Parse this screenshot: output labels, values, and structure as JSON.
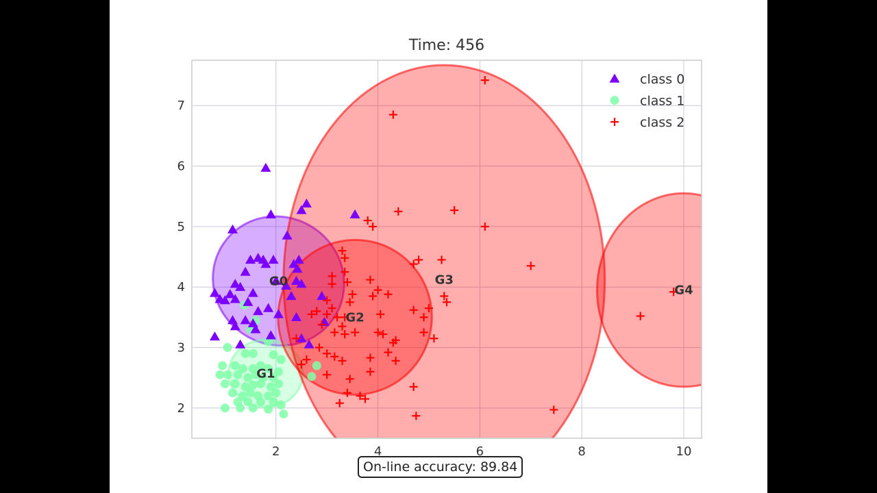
{
  "chart_data": {
    "type": "scatter",
    "title": "Time: 456",
    "xlabel": "",
    "ylabel": "",
    "xlim": [
      0.35,
      10.35
    ],
    "ylim": [
      1.5,
      7.75
    ],
    "xticks": [
      2,
      4,
      6,
      8,
      10
    ],
    "yticks": [
      2,
      3,
      4,
      5,
      6,
      7
    ],
    "grid": true,
    "legend_position": "top-right",
    "series": [
      {
        "name": "class 0",
        "marker": "triangle",
        "color": "#7b00ff",
        "points": [
          [
            1.8,
            5.97
          ],
          [
            2.6,
            5.38
          ],
          [
            2.5,
            5.27
          ],
          [
            3.55,
            5.2
          ],
          [
            1.9,
            5.2
          ],
          [
            1.15,
            4.95
          ],
          [
            2.22,
            4.85
          ],
          [
            1.5,
            4.45
          ],
          [
            1.65,
            4.48
          ],
          [
            1.75,
            4.45
          ],
          [
            1.95,
            4.45
          ],
          [
            2.45,
            4.45
          ],
          [
            1.8,
            4.38
          ],
          [
            2.35,
            4.38
          ],
          [
            2.42,
            4.3
          ],
          [
            1.4,
            4.25
          ],
          [
            2.4,
            4.1
          ],
          [
            2.0,
            4.1
          ],
          [
            1.2,
            4.05
          ],
          [
            1.3,
            4.0
          ],
          [
            2.2,
            4.02
          ],
          [
            2.5,
            4.05
          ],
          [
            0.8,
            3.9
          ],
          [
            1.1,
            3.88
          ],
          [
            1.55,
            3.9
          ],
          [
            2.3,
            3.85
          ],
          [
            2.9,
            3.85
          ],
          [
            0.9,
            3.8
          ],
          [
            1.0,
            3.78
          ],
          [
            1.2,
            3.8
          ],
          [
            1.45,
            3.75
          ],
          [
            1.65,
            3.6
          ],
          [
            1.85,
            3.65
          ],
          [
            2.05,
            3.55
          ],
          [
            2.4,
            3.5
          ],
          [
            1.15,
            3.45
          ],
          [
            1.4,
            3.45
          ],
          [
            1.55,
            3.4
          ],
          [
            2.95,
            3.42
          ],
          [
            1.2,
            3.35
          ],
          [
            1.6,
            3.3
          ],
          [
            1.9,
            3.2
          ],
          [
            0.8,
            3.18
          ],
          [
            2.5,
            3.15
          ],
          [
            2.65,
            3.05
          ],
          [
            1.3,
            3.05
          ]
        ]
      },
      {
        "name": "class 1",
        "marker": "circle",
        "color": "#7fffa8",
        "points": [
          [
            1.38,
            3.7
          ],
          [
            1.6,
            3.45
          ],
          [
            1.5,
            3.3
          ],
          [
            1.85,
            3.1
          ],
          [
            1.05,
            3.0
          ],
          [
            1.4,
            2.9
          ],
          [
            1.55,
            2.9
          ],
          [
            1.95,
            2.88
          ],
          [
            2.1,
            2.8
          ],
          [
            0.95,
            2.7
          ],
          [
            1.2,
            2.7
          ],
          [
            1.35,
            2.65
          ],
          [
            1.55,
            2.65
          ],
          [
            1.7,
            2.7
          ],
          [
            1.85,
            2.65
          ],
          [
            2.05,
            2.6
          ],
          [
            0.9,
            2.55
          ],
          [
            1.05,
            2.55
          ],
          [
            1.25,
            2.55
          ],
          [
            1.45,
            2.5
          ],
          [
            1.6,
            2.55
          ],
          [
            1.75,
            2.5
          ],
          [
            1.95,
            2.5
          ],
          [
            1.0,
            2.4
          ],
          [
            1.2,
            2.4
          ],
          [
            1.4,
            2.35
          ],
          [
            1.55,
            2.38
          ],
          [
            1.7,
            2.4
          ],
          [
            1.9,
            2.35
          ],
          [
            2.05,
            2.4
          ],
          [
            1.15,
            2.25
          ],
          [
            1.35,
            2.2
          ],
          [
            1.5,
            2.25
          ],
          [
            1.65,
            2.2
          ],
          [
            1.85,
            2.2
          ],
          [
            2.0,
            2.25
          ],
          [
            1.25,
            2.1
          ],
          [
            1.45,
            2.1
          ],
          [
            1.7,
            2.1
          ],
          [
            1.95,
            2.1
          ],
          [
            2.1,
            2.05
          ],
          [
            1.0,
            2.0
          ],
          [
            1.3,
            2.0
          ],
          [
            1.55,
            2.0
          ],
          [
            1.85,
            1.98
          ],
          [
            2.15,
            1.9
          ],
          [
            2.8,
            2.7
          ],
          [
            2.7,
            2.52
          ]
        ]
      },
      {
        "name": "class 2",
        "marker": "plus",
        "color": "#ff0000",
        "points": [
          [
            6.1,
            7.42
          ],
          [
            4.3,
            6.85
          ],
          [
            4.4,
            5.25
          ],
          [
            5.5,
            5.27
          ],
          [
            3.8,
            5.1
          ],
          [
            3.9,
            5.0
          ],
          [
            6.1,
            5.0
          ],
          [
            3.3,
            4.6
          ],
          [
            3.35,
            4.48
          ],
          [
            4.8,
            4.45
          ],
          [
            5.25,
            4.45
          ],
          [
            4.7,
            4.38
          ],
          [
            7.0,
            4.35
          ],
          [
            3.35,
            4.25
          ],
          [
            3.1,
            4.18
          ],
          [
            3.4,
            4.08
          ],
          [
            3.1,
            4.05
          ],
          [
            3.85,
            4.12
          ],
          [
            4.0,
            3.95
          ],
          [
            3.5,
            3.88
          ],
          [
            3.0,
            3.78
          ],
          [
            3.1,
            3.65
          ],
          [
            3.45,
            3.75
          ],
          [
            3.9,
            3.85
          ],
          [
            4.2,
            3.88
          ],
          [
            5.3,
            3.85
          ],
          [
            5.35,
            3.75
          ],
          [
            5.0,
            3.65
          ],
          [
            4.7,
            3.62
          ],
          [
            4.9,
            3.5
          ],
          [
            2.8,
            3.6
          ],
          [
            3.0,
            3.55
          ],
          [
            3.2,
            3.5
          ],
          [
            3.35,
            3.5
          ],
          [
            2.7,
            3.55
          ],
          [
            4.05,
            3.55
          ],
          [
            2.9,
            3.38
          ],
          [
            3.3,
            3.35
          ],
          [
            3.15,
            3.25
          ],
          [
            3.35,
            3.22
          ],
          [
            3.55,
            3.25
          ],
          [
            4.0,
            3.25
          ],
          [
            4.1,
            3.22
          ],
          [
            4.9,
            3.25
          ],
          [
            5.1,
            3.15
          ],
          [
            4.3,
            3.08
          ],
          [
            4.35,
            3.12
          ],
          [
            2.4,
            3.15
          ],
          [
            2.85,
            3.0
          ],
          [
            3.0,
            2.9
          ],
          [
            3.15,
            2.85
          ],
          [
            4.2,
            2.92
          ],
          [
            4.35,
            2.78
          ],
          [
            2.6,
            2.8
          ],
          [
            2.5,
            2.72
          ],
          [
            3.3,
            2.78
          ],
          [
            3.85,
            2.83
          ],
          [
            3.0,
            2.55
          ],
          [
            3.45,
            2.48
          ],
          [
            3.85,
            2.6
          ],
          [
            3.4,
            2.25
          ],
          [
            3.65,
            2.2
          ],
          [
            3.75,
            2.15
          ],
          [
            3.25,
            2.08
          ],
          [
            4.7,
            2.35
          ],
          [
            4.75,
            1.87
          ],
          [
            7.45,
            1.97
          ],
          [
            9.15,
            3.52
          ],
          [
            9.8,
            3.92
          ]
        ]
      }
    ],
    "clusters": [
      {
        "label": "G0",
        "center": [
          2.05,
          4.1
        ],
        "rx": 1.25,
        "ry": 1.1,
        "angle": -55,
        "color": "#7f00ff"
      },
      {
        "label": "G1",
        "center": [
          1.8,
          2.57
        ],
        "rx": 0.73,
        "ry": 0.56,
        "angle": 0,
        "color": "#7fffa8"
      },
      {
        "label": "G2",
        "center": [
          3.55,
          3.5
        ],
        "rx": 1.52,
        "ry": 1.27,
        "angle": -75,
        "color": "#ff0000"
      },
      {
        "label": "G3",
        "center": [
          5.3,
          4.12
        ],
        "rx": 3.15,
        "ry": 3.55,
        "angle": 0,
        "color": "#ff0000"
      },
      {
        "label": "G4",
        "center": [
          10.0,
          3.95
        ],
        "rx": 1.7,
        "ry": 1.6,
        "angle": 0,
        "color": "#ff0000"
      }
    ]
  },
  "accuracy": {
    "text": "On-line accuracy: 89.84"
  }
}
